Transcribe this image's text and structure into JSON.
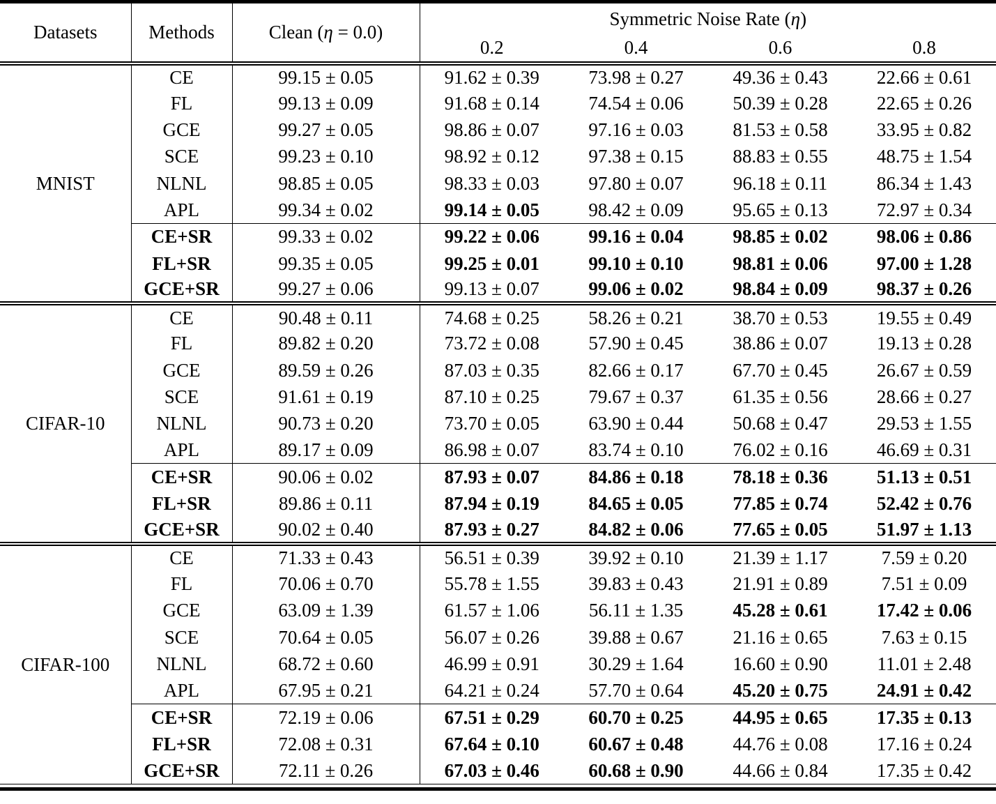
{
  "table": {
    "header": {
      "datasets": "Datasets",
      "methods": "Methods",
      "clean_prefix": "Clean (",
      "eta": "η",
      "clean_suffix": " = 0.0)",
      "group_prefix": "Symmetric Noise Rate (",
      "group_suffix": ")",
      "rates": [
        "0.2",
        "0.4",
        "0.6",
        "0.8"
      ]
    },
    "blocks": [
      {
        "dataset": "MNIST",
        "rows": [
          {
            "method": "CE",
            "method_bold": false,
            "sr_group_start": false,
            "clean": [
              "99.15 ± 0.05",
              0
            ],
            "rates": [
              [
                "91.62 ± 0.39",
                0
              ],
              [
                "73.98 ± 0.27",
                0
              ],
              [
                "49.36 ± 0.43",
                0
              ],
              [
                "22.66 ± 0.61",
                0
              ]
            ]
          },
          {
            "method": "FL",
            "method_bold": false,
            "sr_group_start": false,
            "clean": [
              "99.13 ± 0.09",
              0
            ],
            "rates": [
              [
                "91.68 ± 0.14",
                0
              ],
              [
                "74.54 ± 0.06",
                0
              ],
              [
                "50.39 ± 0.28",
                0
              ],
              [
                "22.65 ± 0.26",
                0
              ]
            ]
          },
          {
            "method": "GCE",
            "method_bold": false,
            "sr_group_start": false,
            "clean": [
              "99.27 ± 0.05",
              0
            ],
            "rates": [
              [
                "98.86 ± 0.07",
                0
              ],
              [
                "97.16 ± 0.03",
                0
              ],
              [
                "81.53 ± 0.58",
                0
              ],
              [
                "33.95 ± 0.82",
                0
              ]
            ]
          },
          {
            "method": "SCE",
            "method_bold": false,
            "sr_group_start": false,
            "clean": [
              "99.23 ± 0.10",
              0
            ],
            "rates": [
              [
                "98.92 ± 0.12",
                0
              ],
              [
                "97.38 ± 0.15",
                0
              ],
              [
                "88.83 ± 0.55",
                0
              ],
              [
                "48.75 ± 1.54",
                0
              ]
            ]
          },
          {
            "method": "NLNL",
            "method_bold": false,
            "sr_group_start": false,
            "clean": [
              "98.85 ± 0.05",
              0
            ],
            "rates": [
              [
                "98.33 ± 0.03",
                0
              ],
              [
                "97.80 ± 0.07",
                0
              ],
              [
                "96.18 ± 0.11",
                0
              ],
              [
                "86.34 ± 1.43",
                0
              ]
            ]
          },
          {
            "method": "APL",
            "method_bold": false,
            "sr_group_start": false,
            "clean": [
              "99.34 ± 0.02",
              0
            ],
            "rates": [
              [
                "99.14 ± 0.05",
                1
              ],
              [
                "98.42 ± 0.09",
                0
              ],
              [
                "95.65 ± 0.13",
                0
              ],
              [
                "72.97 ± 0.34",
                0
              ]
            ]
          },
          {
            "method": "CE+SR",
            "method_bold": true,
            "sr_group_start": true,
            "clean": [
              "99.33 ± 0.02",
              0
            ],
            "rates": [
              [
                "99.22 ± 0.06",
                1
              ],
              [
                "99.16 ± 0.04",
                1
              ],
              [
                "98.85 ± 0.02",
                1
              ],
              [
                "98.06 ± 0.86",
                1
              ]
            ]
          },
          {
            "method": "FL+SR",
            "method_bold": true,
            "sr_group_start": false,
            "clean": [
              "99.35 ± 0.05",
              0
            ],
            "rates": [
              [
                "99.25 ± 0.01",
                1
              ],
              [
                "99.10 ± 0.10",
                1
              ],
              [
                "98.81 ± 0.06",
                1
              ],
              [
                "97.00 ± 1.28",
                1
              ]
            ]
          },
          {
            "method": "GCE+SR",
            "method_bold": true,
            "sr_group_start": false,
            "clean": [
              "99.27 ± 0.06",
              0
            ],
            "rates": [
              [
                "99.13 ± 0.07",
                0
              ],
              [
                "99.06 ± 0.02",
                1
              ],
              [
                "98.84 ± 0.09",
                1
              ],
              [
                "98.37 ± 0.26",
                1
              ]
            ]
          }
        ]
      },
      {
        "dataset": "CIFAR-10",
        "rows": [
          {
            "method": "CE",
            "method_bold": false,
            "sr_group_start": false,
            "clean": [
              "90.48 ± 0.11",
              0
            ],
            "rates": [
              [
                "74.68 ± 0.25",
                0
              ],
              [
                "58.26 ± 0.21",
                0
              ],
              [
                "38.70 ± 0.53",
                0
              ],
              [
                "19.55 ± 0.49",
                0
              ]
            ]
          },
          {
            "method": "FL",
            "method_bold": false,
            "sr_group_start": false,
            "clean": [
              "89.82 ± 0.20",
              0
            ],
            "rates": [
              [
                "73.72 ± 0.08",
                0
              ],
              [
                "57.90 ± 0.45",
                0
              ],
              [
                "38.86 ± 0.07",
                0
              ],
              [
                "19.13 ± 0.28",
                0
              ]
            ]
          },
          {
            "method": "GCE",
            "method_bold": false,
            "sr_group_start": false,
            "clean": [
              "89.59 ± 0.26",
              0
            ],
            "rates": [
              [
                "87.03 ± 0.35",
                0
              ],
              [
                "82.66 ± 0.17",
                0
              ],
              [
                "67.70 ± 0.45",
                0
              ],
              [
                "26.67 ± 0.59",
                0
              ]
            ]
          },
          {
            "method": "SCE",
            "method_bold": false,
            "sr_group_start": false,
            "clean": [
              "91.61 ± 0.19",
              0
            ],
            "rates": [
              [
                "87.10 ± 0.25",
                0
              ],
              [
                "79.67 ± 0.37",
                0
              ],
              [
                "61.35 ± 0.56",
                0
              ],
              [
                "28.66 ± 0.27",
                0
              ]
            ]
          },
          {
            "method": "NLNL",
            "method_bold": false,
            "sr_group_start": false,
            "clean": [
              "90.73 ± 0.20",
              0
            ],
            "rates": [
              [
                "73.70 ± 0.05",
                0
              ],
              [
                "63.90 ± 0.44",
                0
              ],
              [
                "50.68 ± 0.47",
                0
              ],
              [
                "29.53 ± 1.55",
                0
              ]
            ]
          },
          {
            "method": "APL",
            "method_bold": false,
            "sr_group_start": false,
            "clean": [
              "89.17 ± 0.09",
              0
            ],
            "rates": [
              [
                "86.98 ± 0.07",
                0
              ],
              [
                "83.74 ± 0.10",
                0
              ],
              [
                "76.02 ± 0.16",
                0
              ],
              [
                "46.69 ± 0.31",
                0
              ]
            ]
          },
          {
            "method": "CE+SR",
            "method_bold": true,
            "sr_group_start": true,
            "clean": [
              "90.06 ± 0.02",
              0
            ],
            "rates": [
              [
                "87.93 ± 0.07",
                1
              ],
              [
                "84.86 ± 0.18",
                1
              ],
              [
                "78.18 ± 0.36",
                1
              ],
              [
                "51.13 ± 0.51",
                1
              ]
            ]
          },
          {
            "method": "FL+SR",
            "method_bold": true,
            "sr_group_start": false,
            "clean": [
              "89.86 ± 0.11",
              0
            ],
            "rates": [
              [
                "87.94 ± 0.19",
                1
              ],
              [
                "84.65 ± 0.05",
                1
              ],
              [
                "77.85 ± 0.74",
                1
              ],
              [
                "52.42 ± 0.76",
                1
              ]
            ]
          },
          {
            "method": "GCE+SR",
            "method_bold": true,
            "sr_group_start": false,
            "clean": [
              "90.02 ± 0.40",
              0
            ],
            "rates": [
              [
                "87.93 ± 0.27",
                1
              ],
              [
                "84.82 ± 0.06",
                1
              ],
              [
                "77.65 ± 0.05",
                1
              ],
              [
                "51.97 ± 1.13",
                1
              ]
            ]
          }
        ]
      },
      {
        "dataset": "CIFAR-100",
        "rows": [
          {
            "method": "CE",
            "method_bold": false,
            "sr_group_start": false,
            "clean": [
              "71.33 ± 0.43",
              0
            ],
            "rates": [
              [
                "56.51 ± 0.39",
                0
              ],
              [
                "39.92 ± 0.10",
                0
              ],
              [
                "21.39 ± 1.17",
                0
              ],
              [
                "7.59 ± 0.20",
                0
              ]
            ]
          },
          {
            "method": "FL",
            "method_bold": false,
            "sr_group_start": false,
            "clean": [
              "70.06 ± 0.70",
              0
            ],
            "rates": [
              [
                "55.78 ± 1.55",
                0
              ],
              [
                "39.83 ± 0.43",
                0
              ],
              [
                "21.91 ± 0.89",
                0
              ],
              [
                "7.51 ± 0.09",
                0
              ]
            ]
          },
          {
            "method": "GCE",
            "method_bold": false,
            "sr_group_start": false,
            "clean": [
              "63.09 ± 1.39",
              0
            ],
            "rates": [
              [
                "61.57 ± 1.06",
                0
              ],
              [
                "56.11 ± 1.35",
                0
              ],
              [
                "45.28 ± 0.61",
                1
              ],
              [
                "17.42 ± 0.06",
                1
              ]
            ]
          },
          {
            "method": "SCE",
            "method_bold": false,
            "sr_group_start": false,
            "clean": [
              "70.64 ± 0.05",
              0
            ],
            "rates": [
              [
                "56.07 ± 0.26",
                0
              ],
              [
                "39.88 ± 0.67",
                0
              ],
              [
                "21.16 ± 0.65",
                0
              ],
              [
                "7.63 ± 0.15",
                0
              ]
            ]
          },
          {
            "method": "NLNL",
            "method_bold": false,
            "sr_group_start": false,
            "clean": [
              "68.72 ± 0.60",
              0
            ],
            "rates": [
              [
                "46.99 ± 0.91",
                0
              ],
              [
                "30.29 ± 1.64",
                0
              ],
              [
                "16.60 ± 0.90",
                0
              ],
              [
                "11.01 ± 2.48",
                0
              ]
            ]
          },
          {
            "method": "APL",
            "method_bold": false,
            "sr_group_start": false,
            "clean": [
              "67.95 ± 0.21",
              0
            ],
            "rates": [
              [
                "64.21 ± 0.24",
                0
              ],
              [
                "57.70 ± 0.64",
                0
              ],
              [
                "45.20 ± 0.75",
                1
              ],
              [
                "24.91 ± 0.42",
                1
              ]
            ]
          },
          {
            "method": "CE+SR",
            "method_bold": true,
            "sr_group_start": true,
            "clean": [
              "72.19 ± 0.06",
              0
            ],
            "rates": [
              [
                "67.51 ± 0.29",
                1
              ],
              [
                "60.70 ± 0.25",
                1
              ],
              [
                "44.95 ± 0.65",
                1
              ],
              [
                "17.35 ± 0.13",
                1
              ]
            ]
          },
          {
            "method": "FL+SR",
            "method_bold": true,
            "sr_group_start": false,
            "clean": [
              "72.08 ± 0.31",
              0
            ],
            "rates": [
              [
                "67.64 ± 0.10",
                1
              ],
              [
                "60.67 ± 0.48",
                1
              ],
              [
                "44.76 ± 0.08",
                0
              ],
              [
                "17.16 ± 0.24",
                0
              ]
            ]
          },
          {
            "method": "GCE+SR",
            "method_bold": true,
            "sr_group_start": false,
            "clean": [
              "72.11 ± 0.26",
              0
            ],
            "rates": [
              [
                "67.03 ± 0.46",
                1
              ],
              [
                "60.68 ± 0.90",
                1
              ],
              [
                "44.66 ± 0.84",
                0
              ],
              [
                "17.35 ± 0.42",
                0
              ]
            ]
          }
        ]
      }
    ]
  }
}
